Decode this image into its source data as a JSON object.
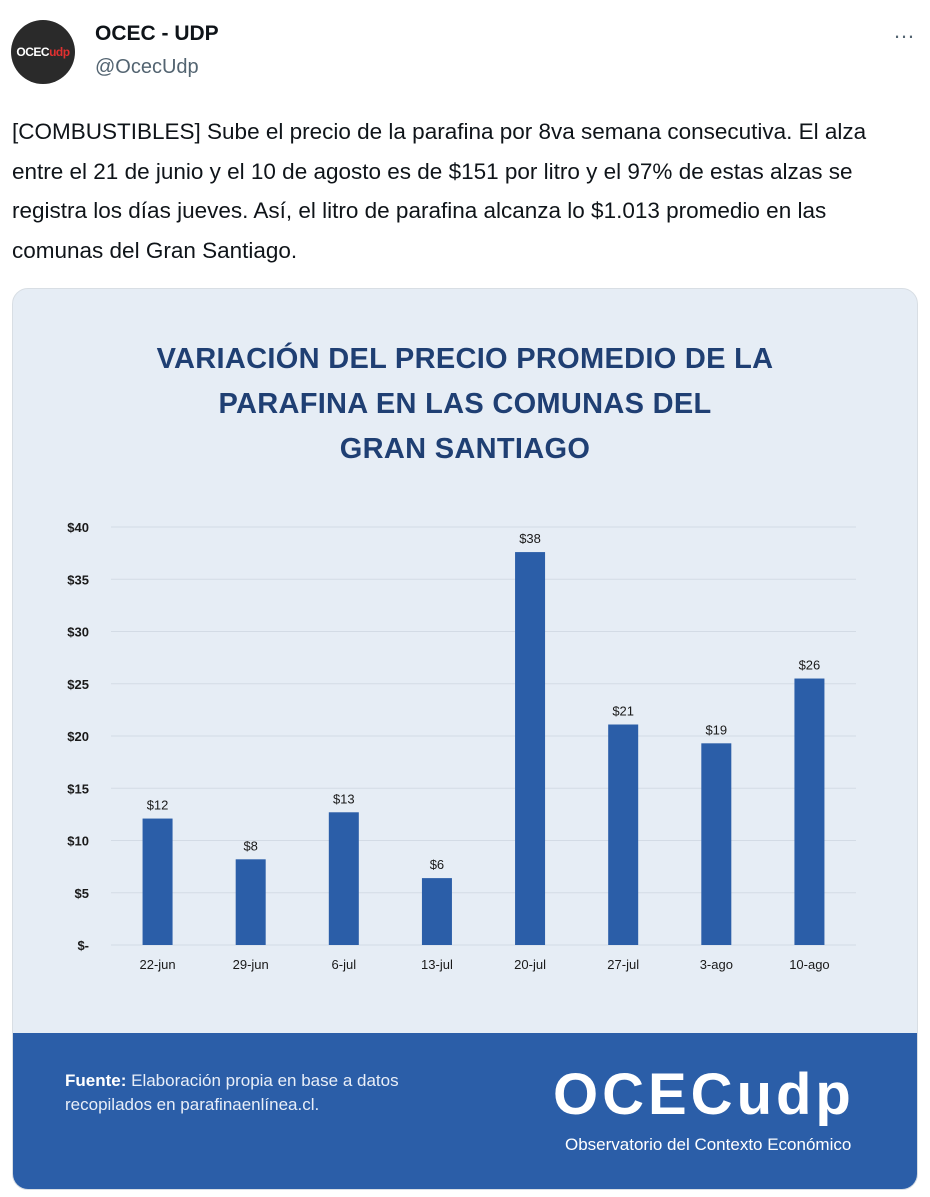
{
  "tweet": {
    "avatar_text": "OCEC",
    "avatar_text_accent": "udp",
    "name": "OCEC - UDP",
    "handle": "@OcecUdp",
    "more_icon": "…",
    "text": "[COMBUSTIBLES] Sube el precio de la parafina por 8va semana consecutiva. El alza entre el 21 de junio y el 10 de agosto es de $151 por litro y el 97% de estas alzas se registra los días jueves. Así, el litro de parafina alcanza lo $1.013 promedio en las comunas del Gran Santiago."
  },
  "card": {
    "title_lines": [
      "VARIACIÓN DEL PRECIO PROMEDIO DE LA",
      "PARAFINA EN LAS COMUNAS DEL",
      "GRAN SANTIAGO"
    ],
    "source_label": "Fuente:",
    "source_text_1": " Elaboración propia en base a datos",
    "source_text_2": "recopilados en parafinaenlínea.cl.",
    "logo_text": "OCECudp",
    "logo_subtitle": "Observatorio del Contexto Económico",
    "bar_color": "#2b5ea8",
    "footer_color": "#2b5ea8",
    "title_color": "#1f3f73"
  },
  "chart_data": {
    "type": "bar",
    "title": "VARIACIÓN DEL PRECIO PROMEDIO DE LA PARAFINA EN LAS COMUNAS DEL GRAN SANTIAGO",
    "categories": [
      "22-jun",
      "29-jun",
      "6-jul",
      "13-jul",
      "20-jul",
      "27-jul",
      "3-ago",
      "10-ago"
    ],
    "values": [
      12.1,
      8.2,
      12.7,
      6.4,
      37.6,
      21.1,
      19.3,
      25.5
    ],
    "data_labels": [
      "$12",
      "$8",
      "$13",
      "$6",
      "$38",
      "$21",
      "$19",
      "$26"
    ],
    "yticks": [
      0,
      5,
      10,
      15,
      20,
      25,
      30,
      35,
      40
    ],
    "ytick_labels": [
      "$-",
      "$5",
      "$10",
      "$15",
      "$20",
      "$25",
      "$30",
      "$35",
      "$40"
    ],
    "ylim": [
      0,
      40
    ],
    "grid": true,
    "xlabel": "",
    "ylabel": ""
  }
}
